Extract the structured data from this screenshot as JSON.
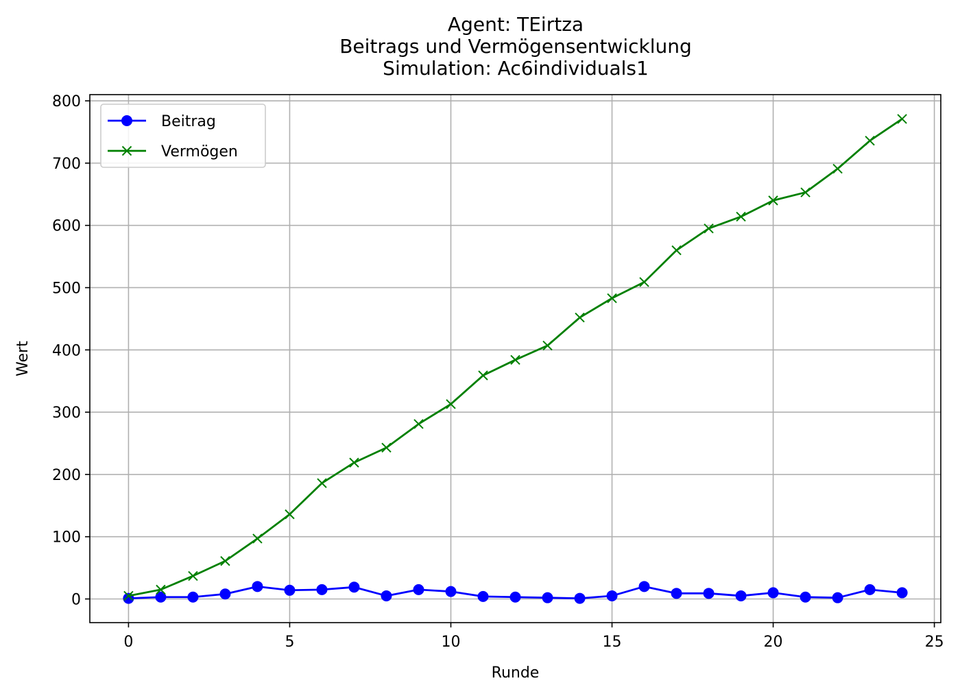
{
  "chart_data": {
    "type": "line",
    "title_lines": [
      "Agent: TEirtza",
      "Beitrags und Vermögensentwicklung",
      "Simulation: Ac6individuals1"
    ],
    "xlabel": "Runde",
    "ylabel": "Wert",
    "xlim": [
      -1.2,
      25.2
    ],
    "ylim": [
      -38,
      810
    ],
    "x_ticks": [
      0,
      5,
      10,
      15,
      20,
      25
    ],
    "y_ticks": [
      0,
      100,
      200,
      300,
      400,
      500,
      600,
      700,
      800
    ],
    "grid": true,
    "legend_position": "top-left",
    "x": [
      0,
      1,
      2,
      3,
      4,
      5,
      6,
      7,
      8,
      9,
      10,
      11,
      12,
      13,
      14,
      15,
      16,
      17,
      18,
      19,
      20,
      21,
      22,
      23,
      24
    ],
    "series": [
      {
        "name": "Beitrag",
        "color": "#0000ff",
        "marker": "circle",
        "values": [
          1,
          3,
          3,
          8,
          20,
          14,
          15,
          19,
          5,
          15,
          12,
          4,
          3,
          2,
          1,
          5,
          20,
          9,
          9,
          5,
          10,
          3,
          2,
          15,
          10
        ]
      },
      {
        "name": "Vermögen",
        "color": "#008000",
        "marker": "x",
        "values": [
          5,
          15,
          37,
          61,
          97,
          136,
          186,
          219,
          243,
          281,
          313,
          359,
          384,
          407,
          452,
          483,
          509,
          560,
          595,
          614,
          640,
          653,
          691,
          736,
          771
        ]
      }
    ]
  }
}
